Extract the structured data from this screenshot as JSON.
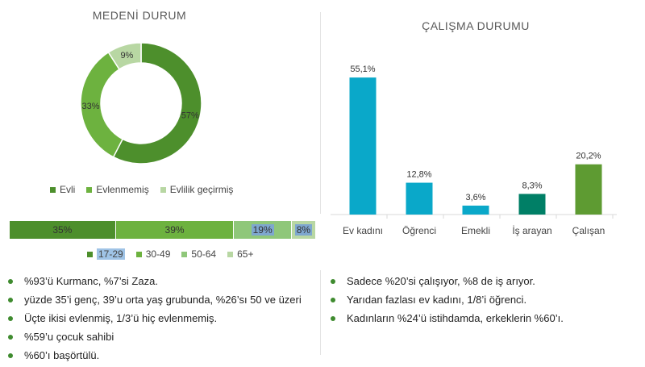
{
  "left_panel": {
    "title": "MEDENİ DURUM"
  },
  "right_panel": {
    "title": "ÇALIŞMA DURUMU"
  },
  "chart_data": [
    {
      "type": "pie",
      "title": "MEDENİ DURUM",
      "categories": [
        "Evli",
        "Evlenmemiş",
        "Evlilik geçirmiş"
      ],
      "values": [
        57,
        33,
        9
      ],
      "labels": [
        "57%",
        "33%",
        "9%"
      ],
      "colors": [
        "#4d8f2c",
        "#6db23f",
        "#b8d7a3"
      ],
      "legend": "bottom"
    },
    {
      "type": "bar",
      "title": "ÇALIŞMA DURUMU",
      "categories": [
        "Ev kadını",
        "Öğrenci",
        "Emekli",
        "İş arayan",
        "Çalışan"
      ],
      "values": [
        55.1,
        12.8,
        3.6,
        8.3,
        20.2
      ],
      "labels": [
        "55,1%",
        "12,8%",
        "3,6%",
        "8,3%",
        "20,2%"
      ],
      "colors": [
        "#0aa8c9",
        "#0aa8c9",
        "#0aa8c9",
        "#007f66",
        "#5e9b32"
      ],
      "ylim": [
        0,
        60
      ]
    },
    {
      "type": "bar",
      "stacked": true,
      "orientation": "horizontal",
      "categories": [
        "17-29",
        "30-49",
        "50-64",
        "65+"
      ],
      "values": [
        35,
        39,
        19,
        8
      ],
      "labels": [
        "35%",
        "39%",
        "19%",
        "8%"
      ],
      "colors": [
        "#4d8f2c",
        "#6db23f",
        "#8fc77a",
        "#b8d7a3"
      ],
      "legend": "bottom"
    }
  ],
  "bullets_left": [
    "%93’ü Kurmanc, %7’si Zaza.",
    "yüzde 35’i genç, 39’u orta yaş grubunda, %26’sı 50 ve üzeri",
    "Üçte ikisi evlenmiş, 1/3’ü hiç evlenmemiş.",
    "%59’u çocuk sahibi",
    "%60’ı başörtülü."
  ],
  "bullets_right": [
    "Sadece %20’si çalışıyor, %8 de iş arıyor.",
    "Yarıdan fazlası ev kadını, 1/8’i öğrenci.",
    "Kadınların %24’ü istihdamda, erkeklerin %60’ı."
  ]
}
